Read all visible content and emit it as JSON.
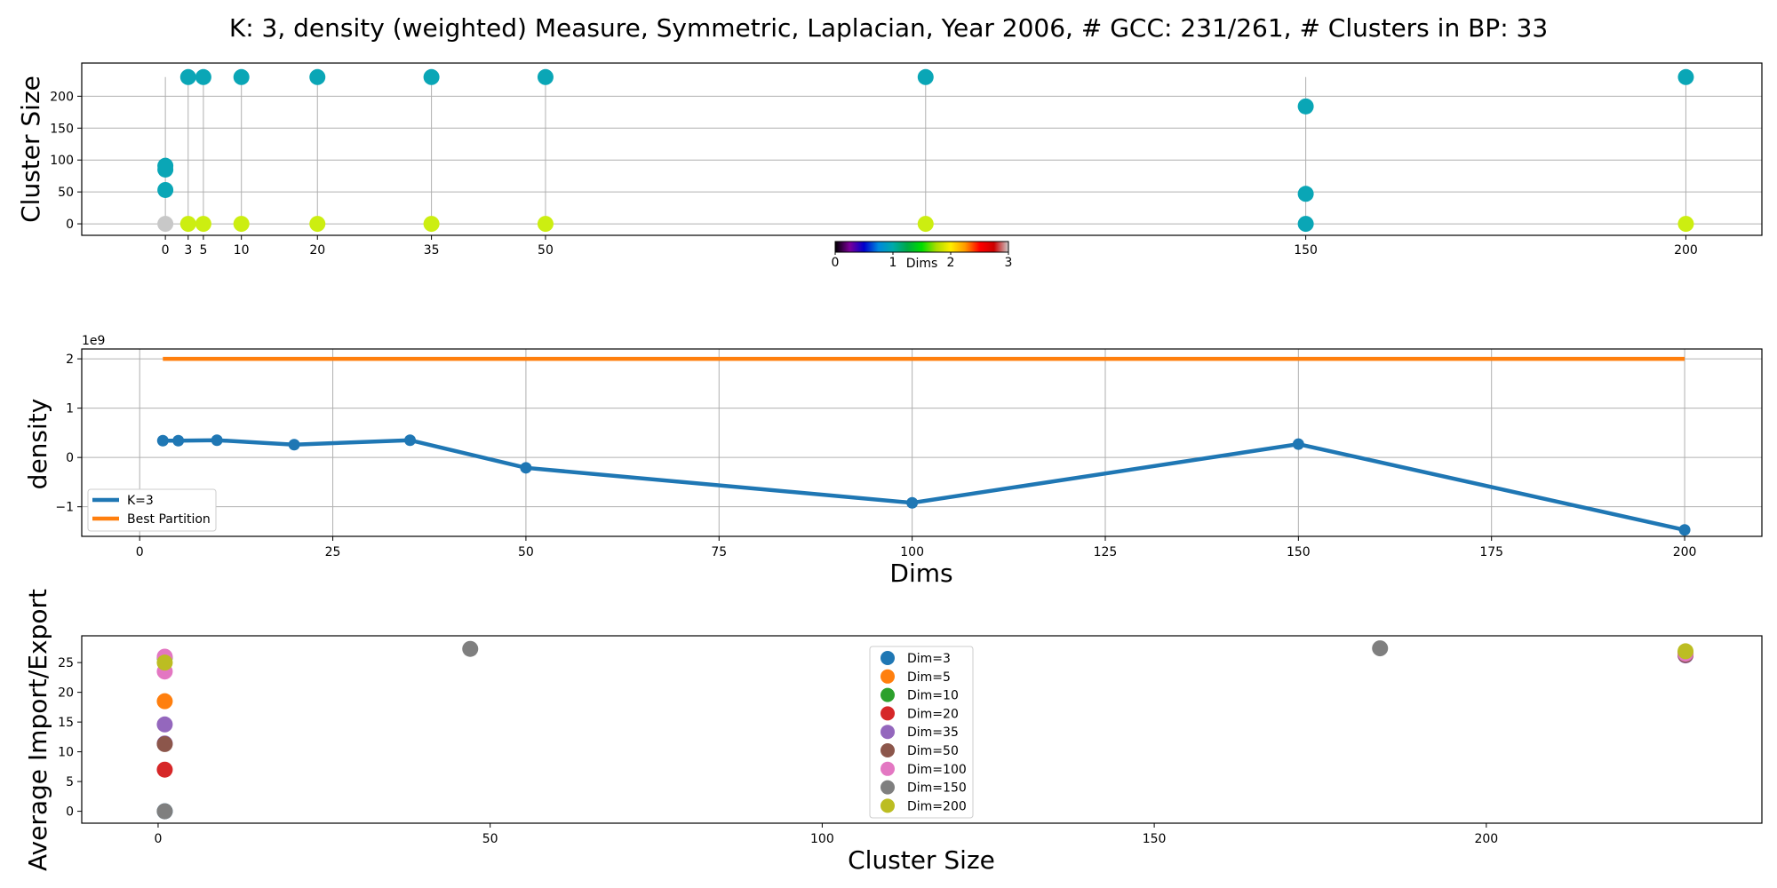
{
  "figure": {
    "title": "K: 3, density (weighted) Measure, Symmetric, Laplacian, Year 2006, # GCC: 231/261, # Clusters in BP: 33"
  },
  "chart_data": [
    {
      "type": "scatter",
      "ylabel": "Cluster Size",
      "xlim": [
        -11,
        210
      ],
      "ylim": [
        -18,
        252
      ],
      "grid": true,
      "x_ticks": [
        0,
        3,
        5,
        10,
        20,
        35,
        50,
        150,
        200
      ],
      "y_ticks": [
        0,
        50,
        100,
        150,
        200
      ],
      "stems": [
        0,
        3,
        5,
        10,
        20,
        35,
        50,
        100,
        150,
        200
      ],
      "points": [
        {
          "x": 0,
          "y": 0,
          "color": "#c8c8c8"
        },
        {
          "x": 0,
          "y": 53,
          "color": "#0aa6b6"
        },
        {
          "x": 0,
          "y": 85,
          "color": "#0aa6b6"
        },
        {
          "x": 0,
          "y": 91,
          "color": "#0aa6b6"
        },
        {
          "x": 3,
          "y": 0,
          "color": "#ccee11"
        },
        {
          "x": 3,
          "y": 230,
          "color": "#0aa6b6"
        },
        {
          "x": 5,
          "y": 0,
          "color": "#ccee11"
        },
        {
          "x": 5,
          "y": 230,
          "color": "#0aa6b6"
        },
        {
          "x": 10,
          "y": 0,
          "color": "#ccee11"
        },
        {
          "x": 10,
          "y": 230,
          "color": "#0aa6b6"
        },
        {
          "x": 20,
          "y": 0,
          "color": "#ccee11"
        },
        {
          "x": 20,
          "y": 230,
          "color": "#0aa6b6"
        },
        {
          "x": 35,
          "y": 0,
          "color": "#ccee11"
        },
        {
          "x": 35,
          "y": 230,
          "color": "#0aa6b6"
        },
        {
          "x": 50,
          "y": 0,
          "color": "#ccee11"
        },
        {
          "x": 50,
          "y": 230,
          "color": "#0aa6b6"
        },
        {
          "x": 100,
          "y": 0,
          "color": "#ccee11"
        },
        {
          "x": 100,
          "y": 230,
          "color": "#0aa6b6"
        },
        {
          "x": 150,
          "y": 0,
          "color": "#0aa6b6"
        },
        {
          "x": 150,
          "y": 47,
          "color": "#0aa6b6"
        },
        {
          "x": 150,
          "y": 184,
          "color": "#0aa6b6"
        },
        {
          "x": 200,
          "y": 0,
          "color": "#ccee11"
        },
        {
          "x": 200,
          "y": 230,
          "color": "#0aa6b6"
        }
      ],
      "colorbar": {
        "label": "Dims",
        "ticks": [
          "0",
          "1",
          "2",
          "3"
        ],
        "colors": [
          "#000000",
          "#7a0099",
          "#0000cc",
          "#0088dd",
          "#00aaaa",
          "#00aa44",
          "#00dd00",
          "#aadd00",
          "#ffee00",
          "#ff9900",
          "#ff0000",
          "#cc0000",
          "#cccccc"
        ]
      }
    },
    {
      "type": "line",
      "ylabel": "density",
      "xlabel": "Dims",
      "y_offset_label": "1e9",
      "xlim": [
        -7.5,
        210
      ],
      "ylim": [
        -1.6,
        2.2
      ],
      "grid": true,
      "x_ticks": [
        0,
        25,
        50,
        75,
        100,
        125,
        150,
        175,
        200
      ],
      "y_ticks": [
        -1,
        0,
        1,
        2
      ],
      "legend_position": "lower-left",
      "series": [
        {
          "name": "K=3",
          "color": "#1f77b4",
          "markers": true,
          "points": [
            [
              3,
              0.34
            ],
            [
              5,
              0.34
            ],
            [
              10,
              0.35
            ],
            [
              20,
              0.26
            ],
            [
              35,
              0.35
            ],
            [
              50,
              -0.21
            ],
            [
              100,
              -0.92
            ],
            [
              150,
              0.27
            ],
            [
              200,
              -1.47
            ]
          ]
        },
        {
          "name": "Best Partition",
          "color": "#ff7f0e",
          "markers": false,
          "points": [
            [
              3,
              2.0
            ],
            [
              200,
              2.0
            ]
          ]
        }
      ]
    },
    {
      "type": "scatter",
      "ylabel": "Average Import/Export",
      "xlabel": "Cluster Size",
      "xlim": [
        -11.5,
        241.5
      ],
      "ylim": [
        -2,
        29.5
      ],
      "grid": false,
      "x_ticks": [
        0,
        50,
        100,
        150,
        200
      ],
      "y_ticks": [
        0,
        5,
        10,
        15,
        20,
        25
      ],
      "legend_position": "upper-center",
      "series": [
        {
          "name": "Dim=3",
          "color": "#1f77b4",
          "points": [
            [
              1,
              0
            ],
            [
              230,
              26.5
            ]
          ]
        },
        {
          "name": "Dim=5",
          "color": "#ff7f0e",
          "points": [
            [
              1,
              18.5
            ],
            [
              230,
              26.7
            ]
          ]
        },
        {
          "name": "Dim=10",
          "color": "#2ca02c",
          "points": [
            [
              1,
              25.8
            ],
            [
              230,
              26.6
            ]
          ]
        },
        {
          "name": "Dim=20",
          "color": "#d62728",
          "points": [
            [
              1,
              7
            ],
            [
              230,
              26.4
            ]
          ]
        },
        {
          "name": "Dim=35",
          "color": "#9467bd",
          "points": [
            [
              1,
              11.4
            ],
            [
              1,
              14.6
            ],
            [
              230,
              26.2
            ]
          ]
        },
        {
          "name": "Dim=50",
          "color": "#8c564b",
          "points": [
            [
              1,
              11.3
            ],
            [
              230,
              26.3
            ]
          ]
        },
        {
          "name": "Dim=100",
          "color": "#e377c2",
          "points": [
            [
              1,
              23.5
            ],
            [
              1,
              26
            ],
            [
              230,
              26.5
            ]
          ]
        },
        {
          "name": "Dim=150",
          "color": "#7f7f7f",
          "points": [
            [
              1,
              0
            ],
            [
              47,
              27.3
            ],
            [
              184,
              27.4
            ]
          ]
        },
        {
          "name": "Dim=200",
          "color": "#bcbd22",
          "points": [
            [
              1,
              25
            ],
            [
              230,
              26.9
            ]
          ]
        }
      ]
    }
  ]
}
